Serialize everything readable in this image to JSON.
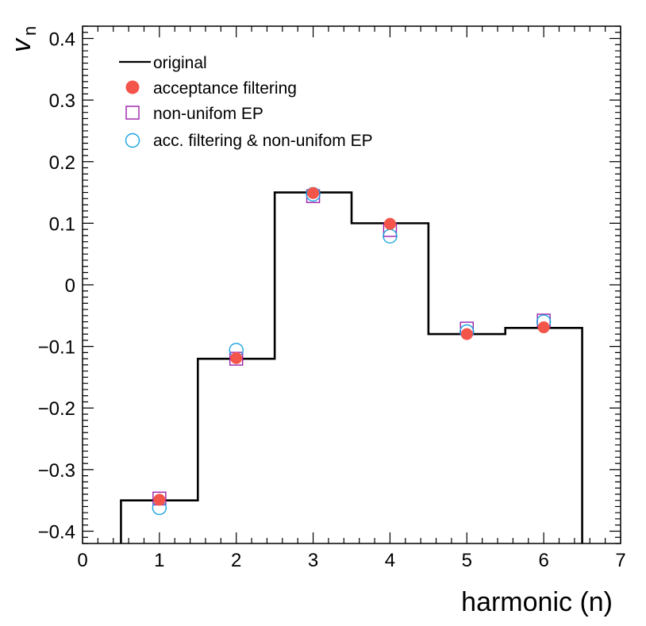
{
  "chart_data": {
    "type": "step+scatter",
    "xlabel": "harmonic (n)",
    "ylabel_main": "v",
    "ylabel_sub": "n",
    "xlim": [
      0,
      7
    ],
    "ylim": [
      -0.42,
      0.42
    ],
    "x_ticks": [
      0,
      1,
      2,
      3,
      4,
      5,
      6,
      7
    ],
    "x_tick_labels": [
      "0",
      "1",
      "2",
      "3",
      "4",
      "5",
      "6",
      "7"
    ],
    "y_ticks": [
      -0.4,
      -0.3,
      -0.2,
      -0.1,
      0,
      0.1,
      0.2,
      0.3,
      0.4
    ],
    "y_tick_labels": [
      "−0.4",
      "−0.3",
      "−0.2",
      "−0.1",
      "0",
      "0.1",
      "0.2",
      "0.3",
      "0.4"
    ],
    "histogram": {
      "name": "original",
      "bin_edges": [
        0.5,
        1.5,
        2.5,
        3.5,
        4.5,
        5.5,
        6.5
      ],
      "values": [
        -0.35,
        -0.12,
        0.15,
        0.1,
        -0.08,
        -0.07
      ],
      "color": "#000000"
    },
    "series": [
      {
        "name": "acceptance filtering",
        "marker": "filled-circle",
        "color": "#f4554a",
        "x": [
          1,
          2,
          3,
          4,
          5,
          6
        ],
        "y": [
          -0.349,
          -0.119,
          0.149,
          0.099,
          -0.08,
          -0.069
        ]
      },
      {
        "name": "non-unifom EP",
        "marker": "open-square",
        "color": "#9b1fa8",
        "x": [
          1,
          2,
          3,
          4,
          5,
          6
        ],
        "y": [
          -0.347,
          -0.12,
          0.144,
          0.089,
          -0.071,
          -0.058
        ]
      },
      {
        "name": "acc. filtering & non-unifom EP",
        "marker": "open-circle",
        "color": "#1aa3e0",
        "x": [
          1,
          2,
          3,
          4,
          5,
          6
        ],
        "y": [
          -0.362,
          -0.106,
          0.147,
          0.079,
          -0.076,
          -0.06
        ]
      }
    ],
    "legend": {
      "placement": "top-left",
      "entries": [
        "original",
        "acceptance filtering",
        "non-unifom EP",
        "acc. filtering & non-unifom EP"
      ]
    }
  }
}
